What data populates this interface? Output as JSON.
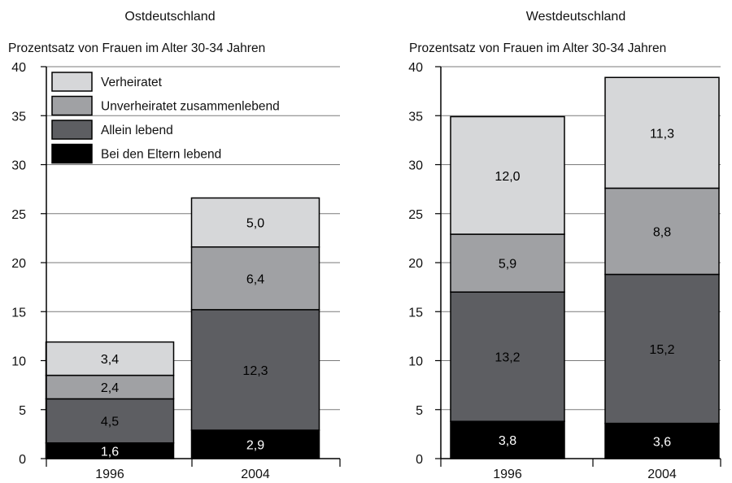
{
  "chart_data": [
    {
      "type": "bar",
      "stacked": true,
      "title": "Ostdeutschland",
      "ylabel": "Prozentsatz von Frauen im Alter 30-34 Jahren",
      "categories": [
        "1996",
        "2004"
      ],
      "ylim": [
        0,
        40
      ],
      "yticks": [
        0,
        5,
        10,
        15,
        20,
        25,
        30,
        35,
        40
      ],
      "grid": true,
      "legend": "top-left",
      "series": [
        {
          "name": "Bei den Eltern lebend",
          "values": [
            1.6,
            2.9
          ],
          "labels": [
            "1,6",
            "2,9"
          ],
          "color": "#000000",
          "text_color": "#ffffff"
        },
        {
          "name": "Allein lebend",
          "values": [
            4.5,
            12.3
          ],
          "labels": [
            "4,5",
            "12,3"
          ],
          "color": "#5d5e62",
          "text_color": "#000000"
        },
        {
          "name": "Unverheiratet zusammenlebend",
          "values": [
            2.4,
            6.4
          ],
          "labels": [
            "2,4",
            "6,4"
          ],
          "color": "#a0a1a4",
          "text_color": "#000000"
        },
        {
          "name": "Verheiratet",
          "values": [
            3.4,
            5.0
          ],
          "labels": [
            "3,4",
            "5,0"
          ],
          "color": "#d6d7d9",
          "text_color": "#000000"
        }
      ]
    },
    {
      "type": "bar",
      "stacked": true,
      "title": "Westdeutschland",
      "ylabel": "Prozentsatz von Frauen im Alter 30-34 Jahren",
      "categories": [
        "1996",
        "2004"
      ],
      "ylim": [
        0,
        40
      ],
      "yticks": [
        0,
        5,
        10,
        15,
        20,
        25,
        30,
        35,
        40
      ],
      "grid": true,
      "series": [
        {
          "name": "Bei den Eltern lebend",
          "values": [
            3.8,
            3.6
          ],
          "labels": [
            "3,8",
            "3,6"
          ],
          "color": "#000000",
          "text_color": "#ffffff"
        },
        {
          "name": "Allein lebend",
          "values": [
            13.2,
            15.2
          ],
          "labels": [
            "13,2",
            "15,2"
          ],
          "color": "#5d5e62",
          "text_color": "#000000"
        },
        {
          "name": "Unverheiratet zusammenlebend",
          "values": [
            5.9,
            8.8
          ],
          "labels": [
            "5,9",
            "8,8"
          ],
          "color": "#a0a1a4",
          "text_color": "#000000"
        },
        {
          "name": "Verheiratet",
          "values": [
            12.0,
            11.3
          ],
          "labels": [
            "12,0",
            "11,3"
          ],
          "color": "#d6d7d9",
          "text_color": "#000000"
        }
      ]
    }
  ]
}
